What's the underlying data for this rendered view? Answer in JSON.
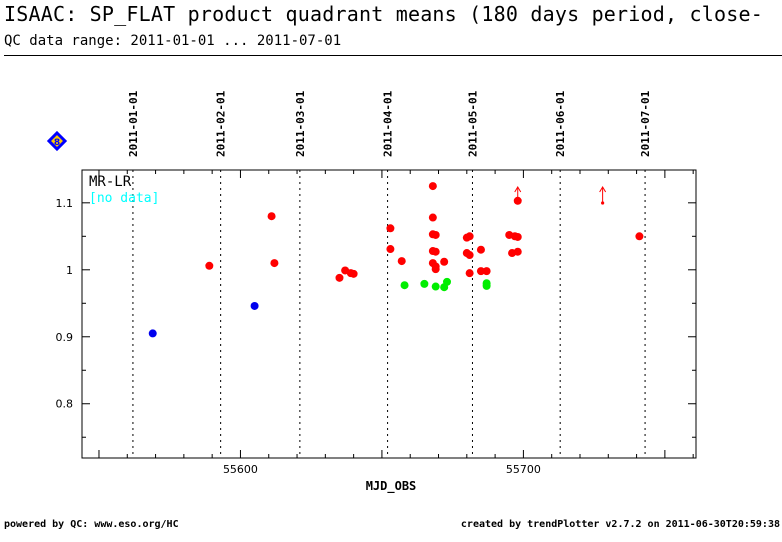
{
  "page": {
    "title": "ISAAC: SP_FLAT product quadrant means (180 days period, close-",
    "subtitle": "QC data range: 2011-01-01 ... 2011-07-01",
    "footer_left": "powered by QC: www.eso.org/HC",
    "footer_right": "created by trendPlotter v2.7.2 on 2011-06-30T20:59:38"
  },
  "chart_data": {
    "type": "scatter",
    "panel_label": "MR-LR",
    "panel_note": "[no data]",
    "badge_label": "8",
    "xlabel": "MJD_OBS",
    "ylabel": "",
    "xlim": [
      55544,
      55761
    ],
    "ylim": [
      0.719,
      1.149
    ],
    "x_ticks": [
      55600,
      55700
    ],
    "y_ticks": [
      0.8,
      0.9,
      1,
      1.1
    ],
    "y_tick_labels": [
      "0.8",
      "0.9",
      "1",
      "1.1"
    ],
    "date_markers": [
      {
        "label": "2011-01-01",
        "mjd": 55562
      },
      {
        "label": "2011-02-01",
        "mjd": 55593
      },
      {
        "label": "2011-03-01",
        "mjd": 55621
      },
      {
        "label": "2011-04-01",
        "mjd": 55652
      },
      {
        "label": "2011-05-01",
        "mjd": 55682
      },
      {
        "label": "2011-06-01",
        "mjd": 55713
      },
      {
        "label": "2011-07-01",
        "mjd": 55743
      }
    ],
    "colors": {
      "red": "#ff0000",
      "green": "#00ee00",
      "blue": "#0000ee",
      "note": "#00ffff",
      "badge": "#0000ff",
      "badge_fill": "#ffcc00"
    },
    "series": [
      {
        "color": "blue",
        "points": [
          [
            55569,
            0.905
          ],
          [
            55605,
            0.946
          ]
        ]
      },
      {
        "color": "red",
        "points": [
          [
            55589,
            1.006
          ],
          [
            55611,
            1.08
          ],
          [
            55612,
            1.01
          ],
          [
            55635,
            0.988
          ],
          [
            55637,
            0.999
          ],
          [
            55639,
            0.995
          ],
          [
            55640,
            0.994
          ],
          [
            55653,
            1.062
          ],
          [
            55653,
            1.031
          ],
          [
            55657,
            1.013
          ],
          [
            55668,
            1.125
          ],
          [
            55668,
            1.078
          ],
          [
            55668,
            1.053
          ],
          [
            55669,
            1.052
          ],
          [
            55668,
            1.028
          ],
          [
            55669,
            1.027
          ],
          [
            55668,
            1.01
          ],
          [
            55669,
            1.005
          ],
          [
            55669,
            1.001
          ],
          [
            55672,
            1.012
          ],
          [
            55680,
            1.048
          ],
          [
            55681,
            1.05
          ],
          [
            55680,
            1.025
          ],
          [
            55681,
            1.022
          ],
          [
            55681,
            0.995
          ],
          [
            55685,
            1.03
          ],
          [
            55685,
            0.998
          ],
          [
            55687,
            0.998
          ],
          [
            55695,
            1.052
          ],
          [
            55697,
            1.05
          ],
          [
            55698,
            1.049
          ],
          [
            55696,
            1.025
          ],
          [
            55698,
            1.027
          ],
          [
            55698,
            1.103
          ],
          [
            55741,
            1.05
          ]
        ]
      },
      {
        "color": "green",
        "points": [
          [
            55658,
            0.977
          ],
          [
            55665,
            0.979
          ],
          [
            55669,
            0.975
          ],
          [
            55672,
            0.974
          ],
          [
            55673,
            0.982
          ],
          [
            55687,
            0.98
          ],
          [
            55687,
            0.976
          ]
        ]
      }
    ],
    "offscale_arrows": [
      {
        "color": "red",
        "x": 55698
      },
      {
        "color": "red",
        "x": 55728
      }
    ]
  }
}
